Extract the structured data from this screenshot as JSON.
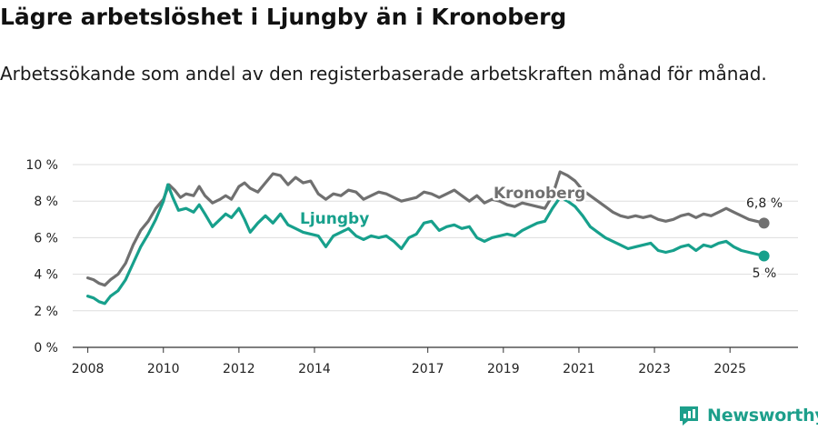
{
  "title": "Lägre arbetslöshet i Ljungby än i Kronoberg",
  "subtitle": "Arbetssökande som andel av den registerbaserade arbetskraften månad för månad.",
  "brand": {
    "name": "Newsworthy"
  },
  "colors": {
    "kronoberg": "#707070",
    "ljungby": "#17a08c",
    "grid": "#dddddd",
    "axis": "#333333"
  },
  "chart_data": {
    "type": "line",
    "title": "Lägre arbetslöshet i Ljungby än i Kronoberg",
    "xlabel": "",
    "ylabel": "",
    "ylim": [
      0,
      10
    ],
    "yticks": [
      {
        "value": 0,
        "label": "0 %"
      },
      {
        "value": 2,
        "label": "2 %"
      },
      {
        "value": 4,
        "label": "4 %"
      },
      {
        "value": 6,
        "label": "6 %"
      },
      {
        "value": 8,
        "label": "8 %"
      },
      {
        "value": 10,
        "label": "10 %"
      }
    ],
    "xlim": [
      2007.6,
      2026.8
    ],
    "xticks": [
      {
        "value": 2008,
        "label": "2008"
      },
      {
        "value": 2010,
        "label": "2010"
      },
      {
        "value": 2012,
        "label": "2012"
      },
      {
        "value": 2014,
        "label": "2014"
      },
      {
        "value": 2017,
        "label": "2017"
      },
      {
        "value": 2019,
        "label": "2019"
      },
      {
        "value": 2021,
        "label": "2021"
      },
      {
        "value": 2023,
        "label": "2023"
      },
      {
        "value": 2025,
        "label": "2025"
      }
    ],
    "series": [
      {
        "name": "Kronoberg",
        "color": "#707070",
        "end_label": "6,8 %",
        "points": [
          [
            2008.0,
            3.8
          ],
          [
            2008.15,
            3.7
          ],
          [
            2008.3,
            3.5
          ],
          [
            2008.45,
            3.4
          ],
          [
            2008.6,
            3.7
          ],
          [
            2008.8,
            4.0
          ],
          [
            2009.0,
            4.6
          ],
          [
            2009.2,
            5.6
          ],
          [
            2009.4,
            6.4
          ],
          [
            2009.6,
            6.9
          ],
          [
            2009.8,
            7.6
          ],
          [
            2010.0,
            8.1
          ],
          [
            2010.15,
            8.9
          ],
          [
            2010.3,
            8.6
          ],
          [
            2010.45,
            8.2
          ],
          [
            2010.6,
            8.4
          ],
          [
            2010.8,
            8.3
          ],
          [
            2010.95,
            8.8
          ],
          [
            2011.1,
            8.3
          ],
          [
            2011.3,
            7.9
          ],
          [
            2011.5,
            8.1
          ],
          [
            2011.65,
            8.3
          ],
          [
            2011.8,
            8.1
          ],
          [
            2012.0,
            8.8
          ],
          [
            2012.15,
            9.0
          ],
          [
            2012.3,
            8.7
          ],
          [
            2012.5,
            8.5
          ],
          [
            2012.7,
            9.0
          ],
          [
            2012.9,
            9.5
          ],
          [
            2013.1,
            9.4
          ],
          [
            2013.3,
            8.9
          ],
          [
            2013.5,
            9.3
          ],
          [
            2013.7,
            9.0
          ],
          [
            2013.9,
            9.1
          ],
          [
            2014.1,
            8.4
          ],
          [
            2014.3,
            8.1
          ],
          [
            2014.5,
            8.4
          ],
          [
            2014.7,
            8.3
          ],
          [
            2014.9,
            8.6
          ],
          [
            2015.1,
            8.5
          ],
          [
            2015.3,
            8.1
          ],
          [
            2015.5,
            8.3
          ],
          [
            2015.7,
            8.5
          ],
          [
            2015.9,
            8.4
          ],
          [
            2016.1,
            8.2
          ],
          [
            2016.3,
            8.0
          ],
          [
            2016.5,
            8.1
          ],
          [
            2016.7,
            8.2
          ],
          [
            2016.9,
            8.5
          ],
          [
            2017.1,
            8.4
          ],
          [
            2017.3,
            8.2
          ],
          [
            2017.5,
            8.4
          ],
          [
            2017.7,
            8.6
          ],
          [
            2017.9,
            8.3
          ],
          [
            2018.1,
            8.0
          ],
          [
            2018.3,
            8.3
          ],
          [
            2018.5,
            7.9
          ],
          [
            2018.7,
            8.1
          ],
          [
            2018.9,
            8.0
          ],
          [
            2019.1,
            7.8
          ],
          [
            2019.3,
            7.7
          ],
          [
            2019.5,
            7.9
          ],
          [
            2019.7,
            7.8
          ],
          [
            2019.9,
            7.7
          ],
          [
            2020.1,
            7.6
          ],
          [
            2020.3,
            8.3
          ],
          [
            2020.5,
            9.6
          ],
          [
            2020.7,
            9.4
          ],
          [
            2020.9,
            9.1
          ],
          [
            2021.1,
            8.6
          ],
          [
            2021.3,
            8.3
          ],
          [
            2021.5,
            8.0
          ],
          [
            2021.7,
            7.7
          ],
          [
            2021.9,
            7.4
          ],
          [
            2022.1,
            7.2
          ],
          [
            2022.3,
            7.1
          ],
          [
            2022.5,
            7.2
          ],
          [
            2022.7,
            7.1
          ],
          [
            2022.9,
            7.2
          ],
          [
            2023.1,
            7.0
          ],
          [
            2023.3,
            6.9
          ],
          [
            2023.5,
            7.0
          ],
          [
            2023.7,
            7.2
          ],
          [
            2023.9,
            7.3
          ],
          [
            2024.1,
            7.1
          ],
          [
            2024.3,
            7.3
          ],
          [
            2024.5,
            7.2
          ],
          [
            2024.7,
            7.4
          ],
          [
            2024.9,
            7.6
          ],
          [
            2025.1,
            7.4
          ],
          [
            2025.3,
            7.2
          ],
          [
            2025.5,
            7.0
          ],
          [
            2025.7,
            6.9
          ],
          [
            2025.9,
            6.8
          ]
        ]
      },
      {
        "name": "Ljungby",
        "color": "#17a08c",
        "end_label": "5 %",
        "points": [
          [
            2008.0,
            2.8
          ],
          [
            2008.15,
            2.7
          ],
          [
            2008.3,
            2.5
          ],
          [
            2008.45,
            2.4
          ],
          [
            2008.6,
            2.8
          ],
          [
            2008.8,
            3.1
          ],
          [
            2009.0,
            3.7
          ],
          [
            2009.2,
            4.6
          ],
          [
            2009.4,
            5.5
          ],
          [
            2009.6,
            6.2
          ],
          [
            2009.8,
            7.0
          ],
          [
            2010.0,
            8.0
          ],
          [
            2010.12,
            8.9
          ],
          [
            2010.25,
            8.2
          ],
          [
            2010.4,
            7.5
          ],
          [
            2010.6,
            7.6
          ],
          [
            2010.8,
            7.4
          ],
          [
            2010.95,
            7.8
          ],
          [
            2011.1,
            7.3
          ],
          [
            2011.3,
            6.6
          ],
          [
            2011.5,
            7.0
          ],
          [
            2011.65,
            7.3
          ],
          [
            2011.8,
            7.1
          ],
          [
            2012.0,
            7.6
          ],
          [
            2012.15,
            7.0
          ],
          [
            2012.3,
            6.3
          ],
          [
            2012.5,
            6.8
          ],
          [
            2012.7,
            7.2
          ],
          [
            2012.9,
            6.8
          ],
          [
            2013.1,
            7.3
          ],
          [
            2013.3,
            6.7
          ],
          [
            2013.5,
            6.5
          ],
          [
            2013.7,
            6.3
          ],
          [
            2013.9,
            6.2
          ],
          [
            2014.1,
            6.1
          ],
          [
            2014.3,
            5.5
          ],
          [
            2014.5,
            6.1
          ],
          [
            2014.7,
            6.3
          ],
          [
            2014.9,
            6.5
          ],
          [
            2015.1,
            6.1
          ],
          [
            2015.3,
            5.9
          ],
          [
            2015.5,
            6.1
          ],
          [
            2015.7,
            6.0
          ],
          [
            2015.9,
            6.1
          ],
          [
            2016.1,
            5.8
          ],
          [
            2016.3,
            5.4
          ],
          [
            2016.5,
            6.0
          ],
          [
            2016.7,
            6.2
          ],
          [
            2016.9,
            6.8
          ],
          [
            2017.1,
            6.9
          ],
          [
            2017.3,
            6.4
          ],
          [
            2017.5,
            6.6
          ],
          [
            2017.7,
            6.7
          ],
          [
            2017.9,
            6.5
          ],
          [
            2018.1,
            6.6
          ],
          [
            2018.3,
            6.0
          ],
          [
            2018.5,
            5.8
          ],
          [
            2018.7,
            6.0
          ],
          [
            2018.9,
            6.1
          ],
          [
            2019.1,
            6.2
          ],
          [
            2019.3,
            6.1
          ],
          [
            2019.5,
            6.4
          ],
          [
            2019.7,
            6.6
          ],
          [
            2019.9,
            6.8
          ],
          [
            2020.1,
            6.9
          ],
          [
            2020.3,
            7.6
          ],
          [
            2020.5,
            8.2
          ],
          [
            2020.7,
            8.0
          ],
          [
            2020.9,
            7.7
          ],
          [
            2021.1,
            7.2
          ],
          [
            2021.3,
            6.6
          ],
          [
            2021.5,
            6.3
          ],
          [
            2021.7,
            6.0
          ],
          [
            2021.9,
            5.8
          ],
          [
            2022.1,
            5.6
          ],
          [
            2022.3,
            5.4
          ],
          [
            2022.5,
            5.5
          ],
          [
            2022.7,
            5.6
          ],
          [
            2022.9,
            5.7
          ],
          [
            2023.1,
            5.3
          ],
          [
            2023.3,
            5.2
          ],
          [
            2023.5,
            5.3
          ],
          [
            2023.7,
            5.5
          ],
          [
            2023.9,
            5.6
          ],
          [
            2024.1,
            5.3
          ],
          [
            2024.3,
            5.6
          ],
          [
            2024.5,
            5.5
          ],
          [
            2024.7,
            5.7
          ],
          [
            2024.9,
            5.8
          ],
          [
            2025.1,
            5.5
          ],
          [
            2025.3,
            5.3
          ],
          [
            2025.5,
            5.2
          ],
          [
            2025.7,
            5.1
          ],
          [
            2025.9,
            5.0
          ]
        ]
      }
    ]
  }
}
